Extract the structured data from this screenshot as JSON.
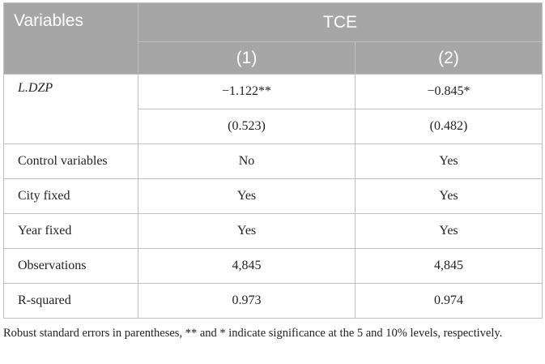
{
  "header": {
    "variables_label": "Variables",
    "group_label": "TCE",
    "columns": [
      "(1)",
      "(2)"
    ]
  },
  "rows": [
    {
      "label": "L.DZP",
      "values": [
        "−1.122**",
        "−0.845*"
      ],
      "se": [
        "(0.523)",
        "(0.482)"
      ]
    },
    {
      "label": "Control variables",
      "values": [
        "No",
        "Yes"
      ]
    },
    {
      "label": "City fixed",
      "values": [
        "Yes",
        "Yes"
      ]
    },
    {
      "label": "Year fixed",
      "values": [
        "Yes",
        "Yes"
      ]
    },
    {
      "label": "Observations",
      "values": [
        "4,845",
        "4,845"
      ]
    },
    {
      "label": "R-squared",
      "values": [
        "0.973",
        "0.974"
      ]
    }
  ],
  "note": "Robust standard errors in parentheses, ** and * indicate significance at the 5 and 10% levels, respectively.",
  "colors": {
    "header_bg": "#a6a6a6",
    "header_text": "#ffffff",
    "border": "#bfbfbf"
  }
}
